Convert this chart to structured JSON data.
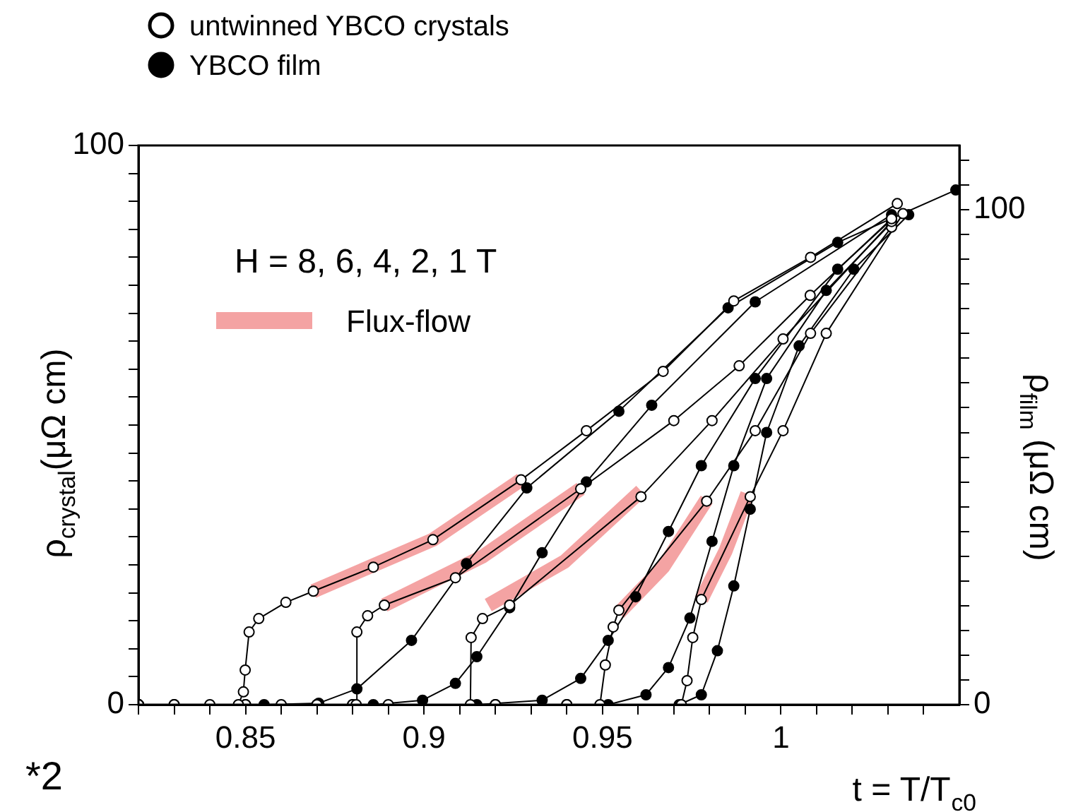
{
  "chart_data": {
    "type": "line",
    "xlabel": "t = T/T$_{c0}$",
    "ylabel": "ρ$_{crystal}$(μΩ cm)",
    "y2label": "ρ$_{film}$ (μΩ cm)",
    "annotations": [
      "H = 8, 6, 4, 2, 1 T",
      "*2"
    ],
    "xlim": [
      0.82,
      1.05
    ],
    "xticks": [
      {
        "value": 0.82,
        "label": null
      },
      {
        "value": 0.83,
        "label": null
      },
      {
        "value": 0.84,
        "label": null
      },
      {
        "value": 0.85,
        "label": "0.85"
      },
      {
        "value": 0.86,
        "label": null
      },
      {
        "value": 0.87,
        "label": null
      },
      {
        "value": 0.88,
        "label": null
      },
      {
        "value": 0.89,
        "label": null
      },
      {
        "value": 0.9,
        "label": "0.9"
      },
      {
        "value": 0.91,
        "label": null
      },
      {
        "value": 0.92,
        "label": null
      },
      {
        "value": 0.93,
        "label": null
      },
      {
        "value": 0.94,
        "label": null
      },
      {
        "value": 0.95,
        "label": "0.95"
      },
      {
        "value": 0.96,
        "label": null
      },
      {
        "value": 0.97,
        "label": null
      },
      {
        "value": 0.98,
        "label": null
      },
      {
        "value": 0.99,
        "label": null
      },
      {
        "value": 1,
        "label": "1"
      },
      {
        "value": 1.01,
        "label": null
      },
      {
        "value": 1.02,
        "label": null
      },
      {
        "value": 1.03,
        "label": null
      },
      {
        "value": 1.04,
        "label": null
      }
    ],
    "ylim": [
      0,
      100
    ],
    "yticks": [
      0,
      {
        "value": 5,
        "label": null
      },
      {
        "value": 10,
        "label": null
      },
      {
        "value": 15,
        "label": null
      },
      {
        "value": 20,
        "label": null
      },
      {
        "value": 25,
        "label": null
      },
      {
        "value": 30,
        "label": null
      },
      {
        "value": 35,
        "label": null
      },
      {
        "value": 40,
        "label": null
      },
      {
        "value": 45,
        "label": null
      },
      {
        "value": 50,
        "label": null
      },
      {
        "value": 55,
        "label": null
      },
      {
        "value": 60,
        "label": null
      },
      {
        "value": 65,
        "label": null
      },
      {
        "value": 70,
        "label": null
      },
      {
        "value": 75,
        "label": null
      },
      {
        "value": 80,
        "label": null
      },
      {
        "value": 85,
        "label": null
      },
      {
        "value": 90,
        "label": null
      },
      {
        "value": 95,
        "label": null
      },
      100
    ],
    "y2lim": [
      0,
      113
    ],
    "y2ticks": [
      0,
      {
        "value": 5,
        "label": null
      },
      {
        "value": 10,
        "label": null
      },
      {
        "value": 15,
        "label": null
      },
      {
        "value": 20,
        "label": null
      },
      {
        "value": 25,
        "label": null
      },
      {
        "value": 30,
        "label": null
      },
      {
        "value": 35,
        "label": null
      },
      {
        "value": 40,
        "label": null
      },
      {
        "value": 45,
        "label": null
      },
      {
        "value": 50,
        "label": null
      },
      {
        "value": 55,
        "label": null
      },
      {
        "value": 60,
        "label": null
      },
      {
        "value": 65,
        "label": null
      },
      {
        "value": 70,
        "label": null
      },
      {
        "value": 75,
        "label": null
      },
      {
        "value": 80,
        "label": null
      },
      {
        "value": 85,
        "label": null
      },
      {
        "value": 90,
        "label": null
      },
      {
        "value": 95,
        "label": null
      },
      100,
      {
        "value": 105,
        "label": null
      },
      {
        "value": 110,
        "label": null
      }
    ],
    "grid": false,
    "legend": "top left",
    "marker": "circle",
    "line_style": "solid",
    "series": [
      {
        "name": "Flux-flow",
        "type": "line",
        "marker": "none",
        "color": "#f4a3a3",
        "axis": "y",
        "x": [
          0.869,
          0.9025,
          0.9272
        ],
        "values": [
          20.3,
          29.5,
          40.2
        ]
      },
      {
        "type": "line",
        "marker": "none",
        "color": "#f4a3a3",
        "axis": "y",
        "x": [
          0.8889,
          0.9164,
          0.9439
        ],
        "values": [
          17.8,
          26.5,
          38.6
        ]
      },
      {
        "type": "line",
        "marker": "none",
        "color": "#f4a3a3",
        "axis": "y",
        "x": [
          0.918,
          0.9394,
          0.9608
        ],
        "values": [
          17.8,
          25.6,
          38.2
        ]
      },
      {
        "type": "line",
        "marker": "none",
        "color": "#f4a3a3",
        "axis": "y",
        "x": [
          0.9546,
          0.967,
          0.9792
        ],
        "values": [
          16.4,
          24.6,
          36.7
        ]
      },
      {
        "type": "line",
        "marker": "none",
        "color": "#f4a3a3",
        "axis": "y",
        "x": [
          0.9777,
          0.9845,
          0.9906
        ],
        "values": [
          18.8,
          27.5,
          37.7
        ]
      },
      {
        "name": "untwinned YBCO crystals",
        "color": "#ffffff",
        "axis": "y",
        "x": [
          0.82,
          0.83,
          0.84,
          0.848,
          0.8494,
          0.8499,
          0.851,
          0.8537,
          0.8613,
          0.869,
          0.8858,
          0.9025,
          0.9272,
          0.9455,
          0.967,
          0.9868,
          1.0083,
          1.0326
        ],
        "values": [
          0,
          0,
          0,
          0,
          2.3,
          6.2,
          13,
          15.4,
          18.3,
          20.3,
          24.6,
          29.5,
          40.2,
          49,
          59.6,
          72.2,
          80,
          89.6
        ]
      },
      {
        "color": "#ffffff",
        "axis": "y",
        "x": [
          0.82,
          0.85,
          0.87,
          0.881,
          0.8812,
          0.8842,
          0.8889,
          0.9088,
          0.9439,
          0.97,
          0.9883,
          1.0082,
          1.031
        ],
        "values": [
          0,
          0,
          0,
          0,
          13,
          15.9,
          17.8,
          22.7,
          38.6,
          50.8,
          60.6,
          73.2,
          86.9
        ]
      },
      {
        "color": "#ffffff",
        "axis": "y",
        "x": [
          0.82,
          0.86,
          0.89,
          0.913,
          0.9132,
          0.9164,
          0.924,
          0.9608,
          0.9807,
          1.0006,
          1.031
        ],
        "values": [
          0,
          0,
          0,
          0,
          12,
          15.4,
          17.8,
          37.2,
          50.8,
          65.4,
          86.4
        ]
      },
      {
        "color": "#ffffff",
        "axis": "y",
        "x": [
          0.82,
          0.87,
          0.92,
          0.9493,
          0.9508,
          0.953,
          0.9546,
          0.9792,
          0.9928,
          1.0083,
          1.031
        ],
        "values": [
          0,
          0,
          0,
          0,
          7.1,
          13.9,
          16.9,
          36.4,
          49,
          66.4,
          85.4
        ]
      },
      {
        "color": "#ffffff",
        "axis": "y",
        "x": [
          0.82,
          0.88,
          0.94,
          0.9721,
          0.9737,
          0.9753,
          0.9777,
          0.9914,
          1.0006,
          1.0127,
          1.0342
        ],
        "values": [
          0,
          0,
          0,
          0,
          4.3,
          12,
          18.8,
          37.2,
          49,
          66.4,
          87.8
        ]
      },
      {
        "name": "YBCO film",
        "color": "#000000",
        "axis": "y2",
        "x": [
          0.83,
          0.8552,
          0.8705,
          0.8812,
          0.8965,
          0.9119,
          0.9288,
          0.9546,
          0.9852,
          1.0159,
          1.049
        ],
        "values": [
          0,
          0,
          0.3,
          3.2,
          13,
          28.5,
          43.8,
          59.3,
          80.2,
          93.4,
          104
        ]
      },
      {
        "color": "#000000",
        "axis": "y2",
        "x": [
          0.85,
          0.8858,
          0.8996,
          0.9088,
          0.9148,
          0.924,
          0.9331,
          0.9455,
          0.9638,
          0.9928,
          1.031
        ],
        "values": [
          0,
          0,
          0.9,
          4.3,
          9.7,
          19.6,
          30.7,
          45,
          60.5,
          81.4,
          99
        ]
      },
      {
        "color": "#000000",
        "axis": "y2",
        "x": [
          0.88,
          0.9148,
          0.9331,
          0.9439,
          0.9516,
          0.9593,
          0.9685,
          0.9777,
          0.9928,
          1.0159,
          1.031
        ],
        "values": [
          0,
          0,
          0.9,
          5.3,
          13,
          21.8,
          35,
          48.3,
          65.9,
          88,
          98
        ]
      },
      {
        "color": "#000000",
        "axis": "y2",
        "x": [
          0.92,
          0.9516,
          0.9622,
          0.9685,
          0.9745,
          0.9807,
          0.9868,
          0.996,
          1.0127,
          1.031
        ],
        "values": [
          0,
          0,
          2,
          7.5,
          17.5,
          33,
          48.3,
          65.9,
          83.7,
          97.4
        ]
      },
      {
        "color": "#000000",
        "axis": "y2",
        "x": [
          0.94,
          0.9715,
          0.9777,
          0.9822,
          0.9868,
          0.9914,
          0.996,
          1.0051,
          1.0204,
          1.0358
        ],
        "values": [
          0,
          0,
          2,
          10.9,
          24,
          39.5,
          55,
          72.5,
          88,
          99
        ]
      }
    ]
  }
}
